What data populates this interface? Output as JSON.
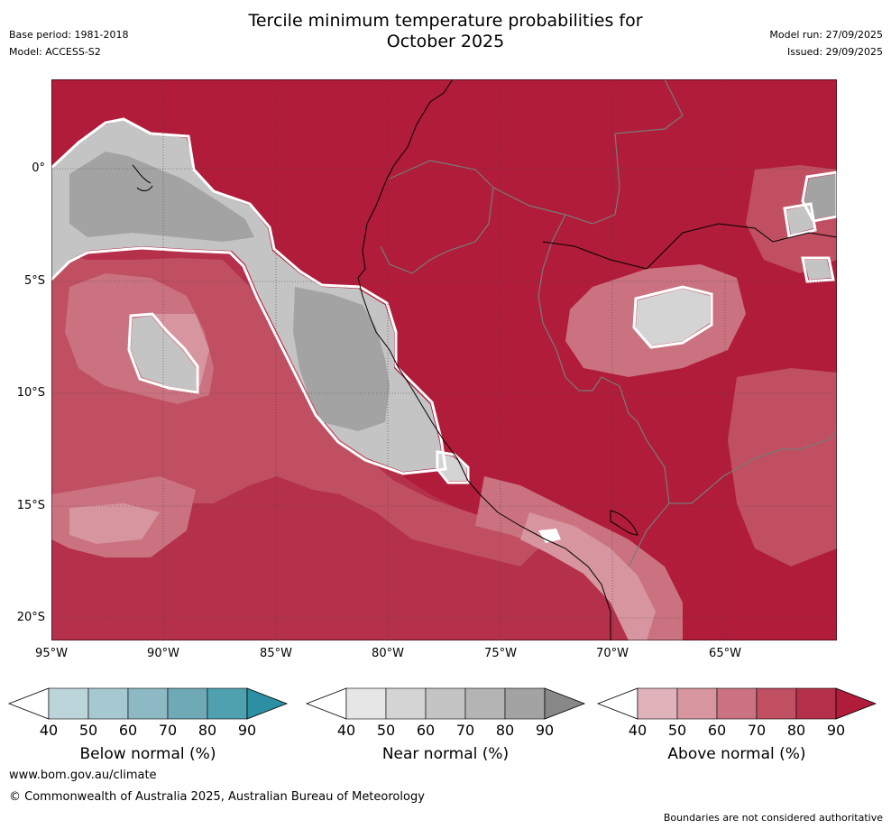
{
  "header": {
    "title_line1": "Tercile minimum temperature probabilities for",
    "title_line2": "October 2025",
    "base_period": "Base period: 1981-2018",
    "model": "Model: ACCESS-S2",
    "model_run": "Model run: 27/09/2025",
    "issued": "Issued: 29/09/2025"
  },
  "axes": {
    "lat_labels": [
      "0°",
      "5°S",
      "10°S",
      "15°S",
      "20°S"
    ],
    "lon_labels": [
      "95°W",
      "90°W",
      "85°W",
      "80°W",
      "75°W",
      "70°W",
      "65°W"
    ]
  },
  "legends": {
    "below": {
      "label": "Below normal (%)",
      "ticks": [
        "40",
        "50",
        "60",
        "70",
        "80",
        "90"
      ],
      "colors": [
        "#ffffff",
        "#bcd5db",
        "#a6c9d1",
        "#8cb9c4",
        "#6fa9b6",
        "#4fa1b0",
        "#2d8fa3"
      ]
    },
    "near": {
      "label": "Near normal (%)",
      "ticks": [
        "40",
        "50",
        "60",
        "70",
        "80",
        "90"
      ],
      "colors": [
        "#ffffff",
        "#e6e6e6",
        "#d4d4d4",
        "#c4c4c4",
        "#b4b4b4",
        "#a3a3a3",
        "#888888"
      ]
    },
    "above": {
      "label": "Above normal (%)",
      "ticks": [
        "40",
        "50",
        "60",
        "70",
        "80",
        "90"
      ],
      "colors": [
        "#ffffff",
        "#e0b3bb",
        "#d6959f",
        "#cb7280",
        "#c04f62",
        "#b5304a",
        "#b01c3a"
      ]
    }
  },
  "footer": {
    "website": "www.bom.gov.au/climate",
    "copyright": "© Commonwealth of Australia 2025, Australian Bureau of Meteorology",
    "disclaimer": "Boundaries are not considered authoritative"
  }
}
